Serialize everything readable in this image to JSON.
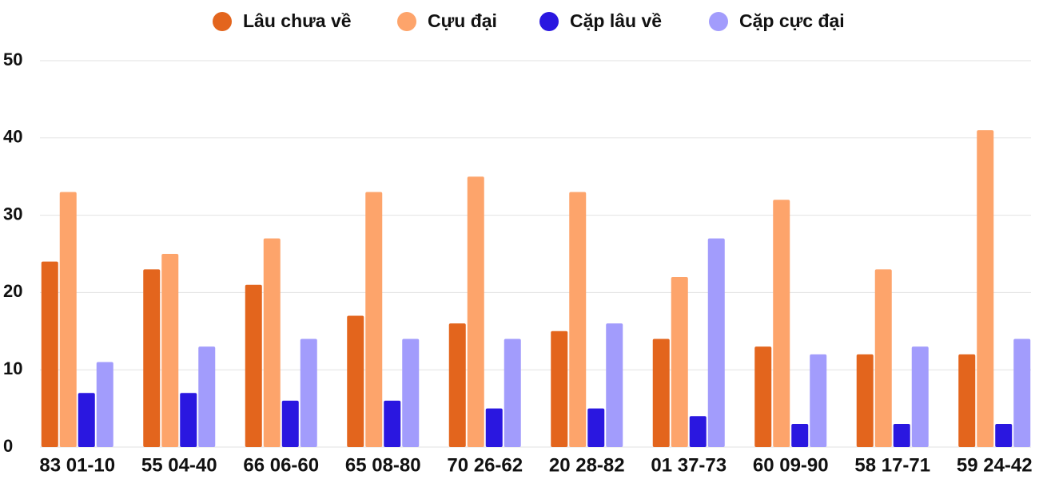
{
  "chart_data": {
    "type": "bar",
    "categories": [
      "83 01-10",
      "55 04-40",
      "66 06-60",
      "65 08-80",
      "70 26-62",
      "20 28-82",
      "01 37-73",
      "60 09-90",
      "58 17-71",
      "59 24-42"
    ],
    "series": [
      {
        "name": "Lâu chưa về",
        "color": "#e3651d",
        "values": [
          24,
          23,
          21,
          17,
          16,
          15,
          14,
          13,
          12,
          12
        ]
      },
      {
        "name": "Cựu đại",
        "color": "#fda46b",
        "values": [
          33,
          25,
          27,
          33,
          35,
          33,
          22,
          32,
          23,
          41
        ]
      },
      {
        "name": "Cặp lâu về",
        "color": "#2a17e0",
        "values": [
          7,
          7,
          6,
          6,
          5,
          5,
          4,
          3,
          3,
          3
        ]
      },
      {
        "name": "Cặp cực đại",
        "color": "#a29cfc",
        "values": [
          11,
          13,
          14,
          14,
          14,
          16,
          27,
          12,
          13,
          14
        ]
      }
    ],
    "ylim": [
      0,
      50
    ],
    "yticks": [
      0,
      10,
      20,
      30,
      40,
      50
    ],
    "grid": true,
    "legend": "top"
  }
}
